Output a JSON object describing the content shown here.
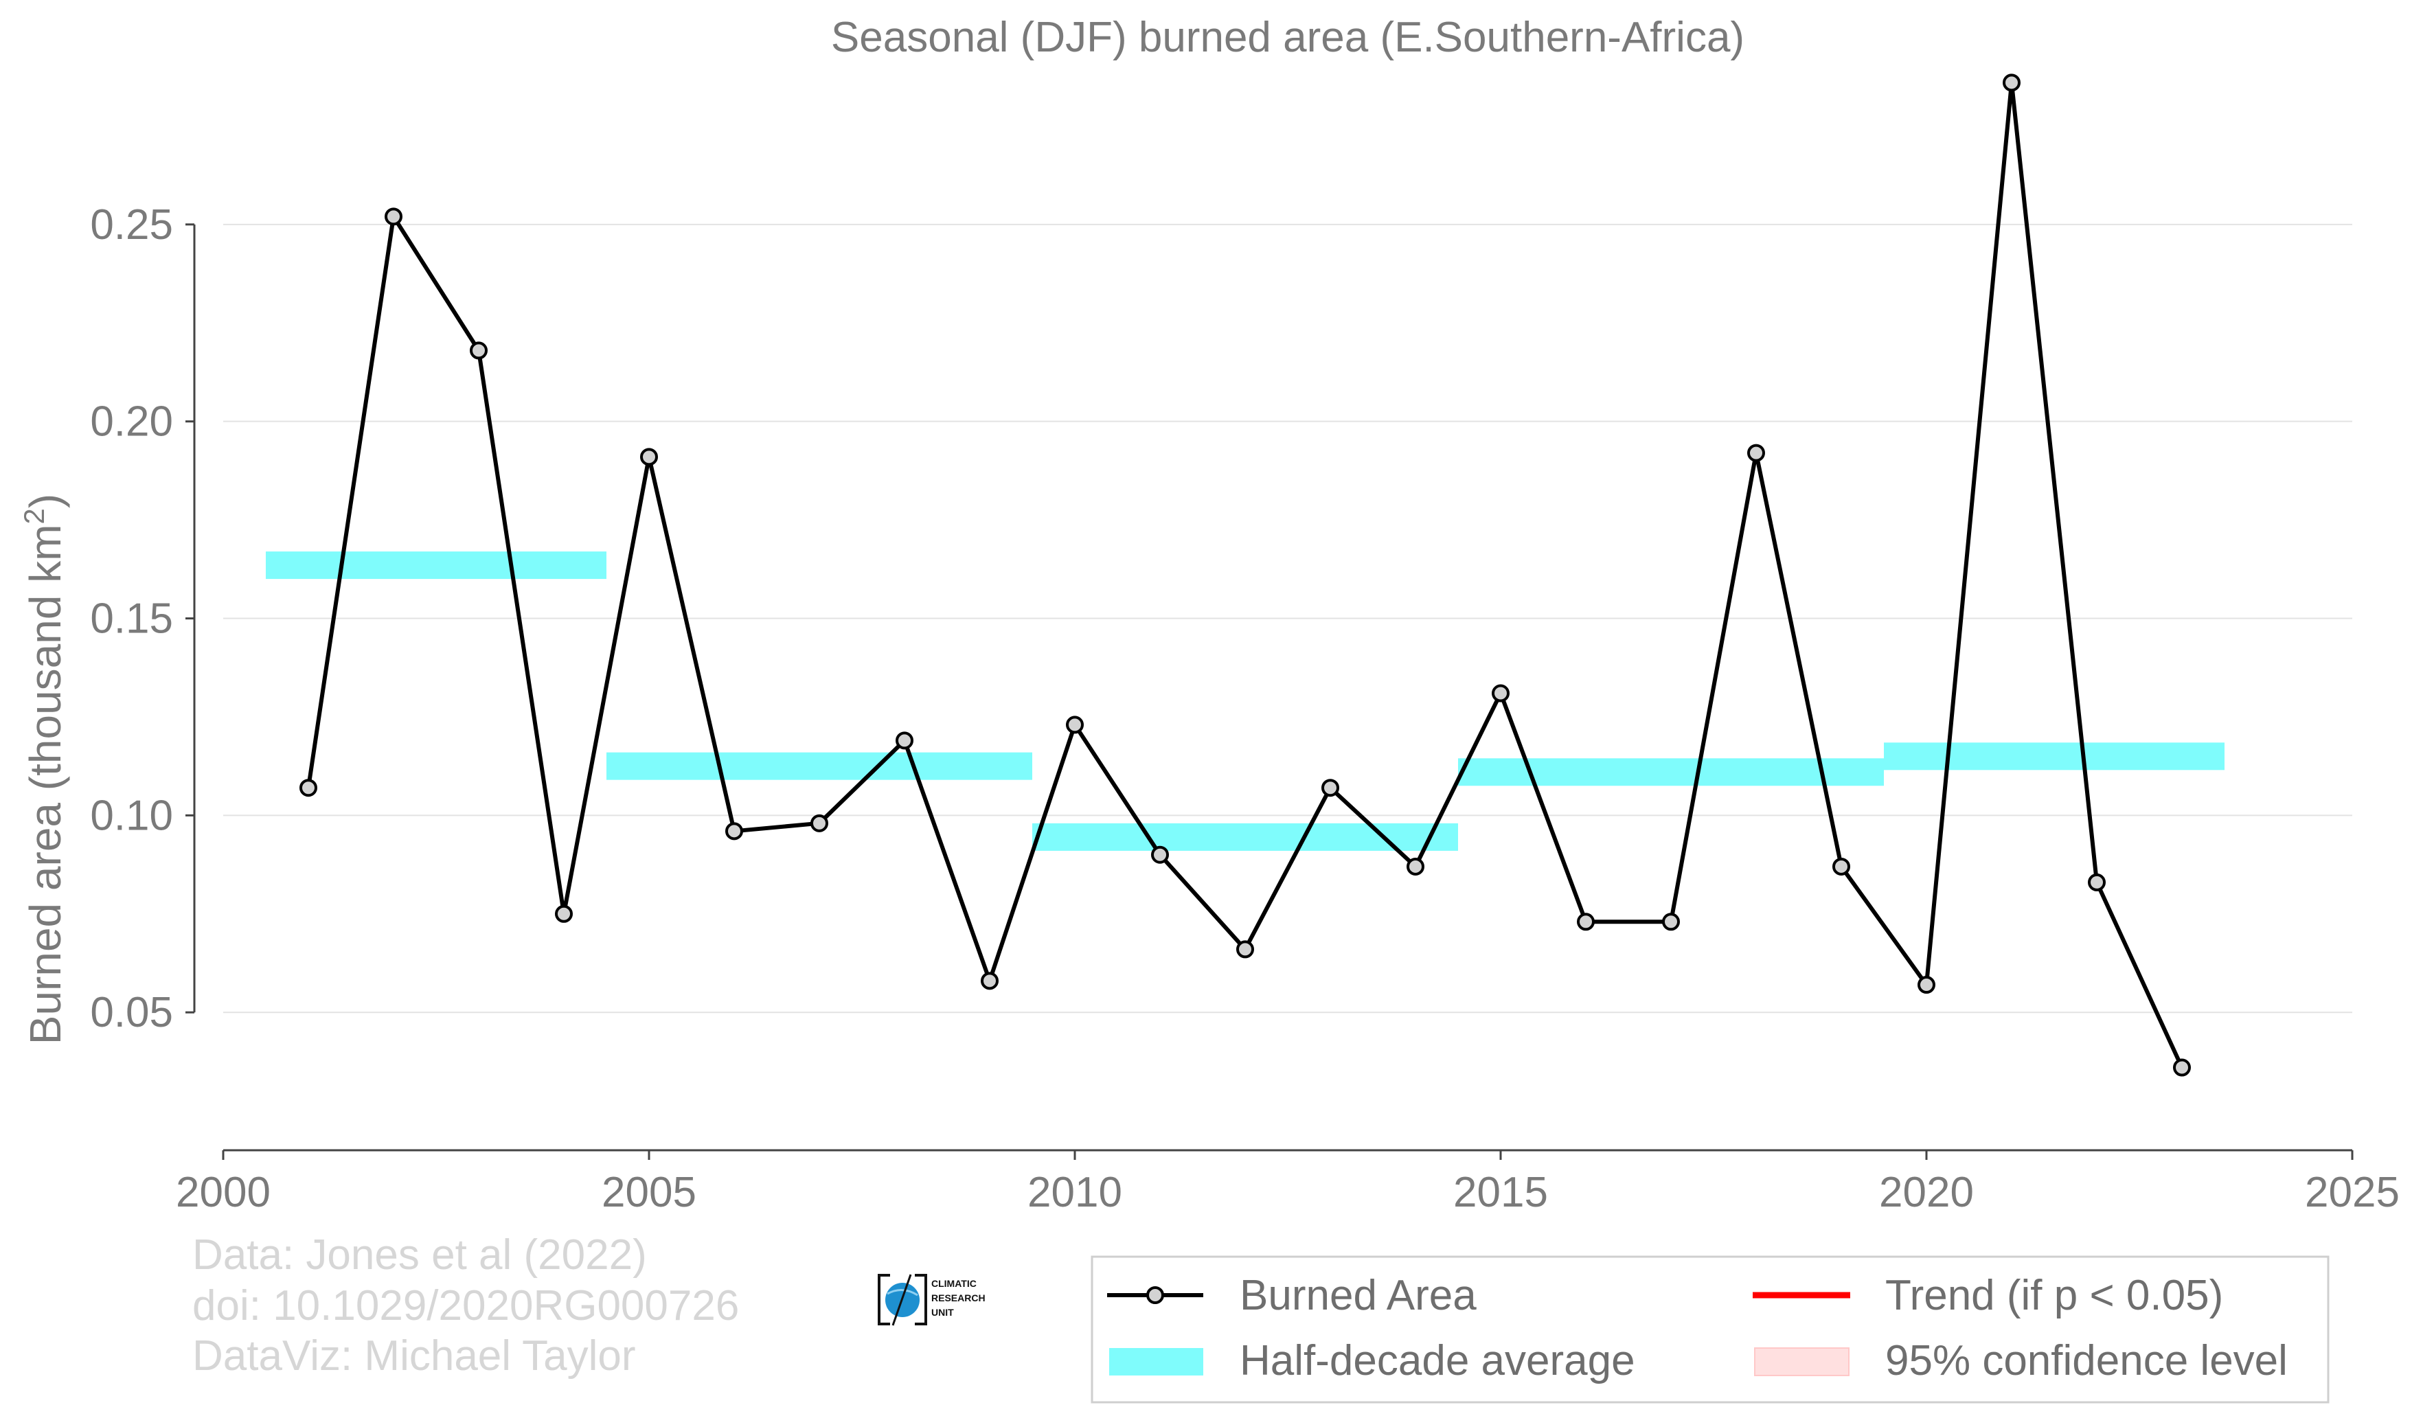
{
  "chart_data": {
    "type": "line",
    "title": "Seasonal (DJF) burned area (E.Southern-Africa)",
    "ylabel": "Burned area (thousand km",
    "ylabel_superscript": "2",
    "ylabel_suffix": ")",
    "xlabel": "",
    "xlim": [
      2000,
      2025
    ],
    "ylim": [
      0.015,
      0.3
    ],
    "grid": true,
    "x_ticks": [
      2000,
      2005,
      2010,
      2015,
      2020,
      2025
    ],
    "x_tick_labels": [
      "2000",
      "2005",
      "2010",
      "2015",
      "2020",
      "2025"
    ],
    "y_ticks": [
      0.05,
      0.1,
      0.15,
      0.2,
      0.25
    ],
    "y_tick_labels": [
      "0.05",
      "0.10",
      "0.15",
      "0.20",
      "0.25"
    ],
    "series": [
      {
        "name": "Burned Area",
        "color": "#000000",
        "marker_fill": "#d3d3d3",
        "x": [
          2001,
          2002,
          2003,
          2004,
          2005,
          2006,
          2007,
          2008,
          2009,
          2010,
          2011,
          2012,
          2013,
          2014,
          2015,
          2016,
          2017,
          2018,
          2019,
          2020,
          2021,
          2022,
          2023
        ],
        "y": [
          0.107,
          0.252,
          0.218,
          0.075,
          0.191,
          0.096,
          0.098,
          0.119,
          0.058,
          0.123,
          0.09,
          0.066,
          0.107,
          0.087,
          0.131,
          0.073,
          0.073,
          0.192,
          0.087,
          0.057,
          0.286,
          0.083,
          0.036
        ]
      }
    ],
    "half_decade_averages": {
      "name": "Half-decade average",
      "color": "#7ffcfc",
      "segments": [
        {
          "x_start": 2000.5,
          "x_end": 2004.5,
          "y": 0.1635
        },
        {
          "x_start": 2004.5,
          "x_end": 2009.5,
          "y": 0.1125
        },
        {
          "x_start": 2009.5,
          "x_end": 2014.5,
          "y": 0.0945
        },
        {
          "x_start": 2014.5,
          "x_end": 2019.5,
          "y": 0.111
        },
        {
          "x_start": 2019.5,
          "x_end": 2023.5,
          "y": 0.115
        }
      ]
    },
    "legend": {
      "placement": "bottom-right",
      "entries": [
        {
          "label": "Burned Area",
          "kind": "line-marker",
          "color": "#000000"
        },
        {
          "label": "Trend (if p < 0.05)",
          "kind": "line",
          "color": "#ff0000"
        },
        {
          "label": "Half-decade average",
          "kind": "patch",
          "color": "#7ffcfc"
        },
        {
          "label": "95% confidence level",
          "kind": "patch",
          "color": "#ffe0e0"
        }
      ]
    }
  },
  "credits": {
    "line1": "Data: Jones et al (2022)",
    "line2": "doi: 10.1029/2020RG000726",
    "line3": "DataViz: Michael Taylor"
  },
  "logo": {
    "line1": "CLIMATIC",
    "line2": "RESEARCH",
    "line3": "UNIT",
    "accent_color": "#1e90d0"
  }
}
